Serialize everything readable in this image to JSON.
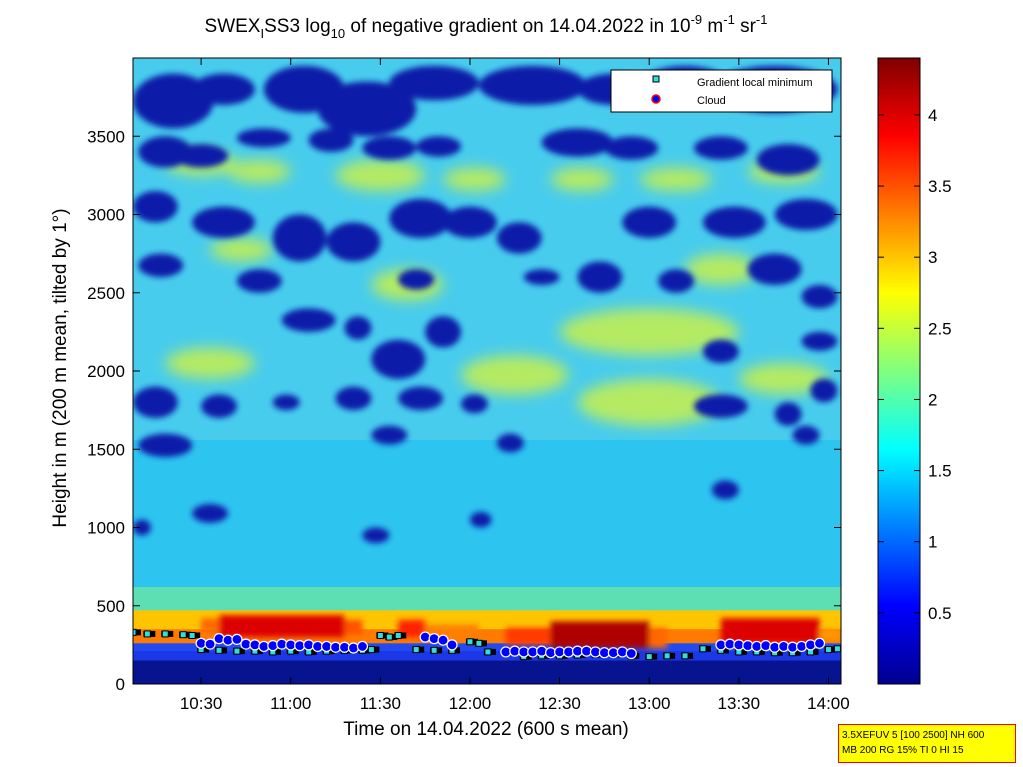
{
  "chart_data": {
    "type": "heatmap",
    "title": {
      "prefix": "SWEX",
      "sub": "I",
      "mid1": "SS3 log",
      "sub2": "10",
      "mid2": " of negative gradient on 14.04.2022 in 10",
      "sup1": "-9",
      "mid3": " m",
      "sup2": "-1",
      "mid4": " sr",
      "sup3": "-1"
    },
    "xlabel": "Time on 14.04.2022 (600 s mean)",
    "ylabel": "Height in m (200 m mean, tilted by 1°)",
    "x_ticks": [
      "10:30",
      "11:00",
      "11:30",
      "12:00",
      "12:30",
      "13:00",
      "13:30",
      "14:00"
    ],
    "x_tick_hours": [
      10.5,
      11.0,
      11.5,
      12.0,
      12.5,
      13.0,
      13.5,
      14.0
    ],
    "x_range_hours": [
      10.12,
      14.07
    ],
    "y_ticks": [
      "0",
      "500",
      "1000",
      "1500",
      "2000",
      "2500",
      "3000",
      "3500"
    ],
    "y_tick_values": [
      0,
      500,
      1000,
      1500,
      2000,
      2500,
      3000,
      3500
    ],
    "ylim": [
      0,
      4000
    ],
    "colorbar": {
      "ticks": [
        "0.5",
        "1",
        "1.5",
        "2",
        "2.5",
        "3",
        "3.5",
        "4"
      ],
      "tick_values": [
        0.5,
        1,
        1.5,
        2,
        2.5,
        3,
        3.5,
        4
      ],
      "range": [
        0,
        4.4
      ],
      "colormap": "jet"
    },
    "legend": {
      "placement": "top-right",
      "entries": [
        {
          "label": "Gradient local minimum",
          "marker": "square",
          "color": "#33dddd"
        },
        {
          "label": "Cloud",
          "marker": "circle",
          "color": "#0000ff",
          "edge": "#ff0000"
        }
      ]
    },
    "gradient_minimum": {
      "x": [
        10.12,
        10.2,
        10.3,
        10.4,
        10.45,
        10.5,
        10.6,
        10.7,
        10.8,
        10.9,
        11.0,
        11.1,
        11.2,
        11.3,
        11.4,
        11.45,
        11.5,
        11.55,
        11.6,
        11.7,
        11.8,
        11.9,
        12.0,
        12.05,
        12.1,
        12.2,
        12.3,
        12.4,
        12.5,
        12.6,
        12.7,
        12.8,
        12.9,
        13.0,
        13.1,
        13.2,
        13.3,
        13.4,
        13.5,
        13.6,
        13.7,
        13.8,
        13.9,
        14.0,
        14.05
      ],
      "y": [
        330,
        320,
        320,
        315,
        310,
        220,
        215,
        210,
        210,
        205,
        210,
        205,
        210,
        215,
        215,
        220,
        310,
        300,
        310,
        220,
        215,
        215,
        270,
        260,
        205,
        200,
        175,
        180,
        180,
        185,
        190,
        190,
        180,
        175,
        180,
        180,
        225,
        215,
        205,
        205,
        200,
        200,
        205,
        220,
        225
      ]
    },
    "cloud": {
      "x": [
        10.5,
        10.55,
        10.6,
        10.65,
        10.7,
        10.75,
        10.8,
        10.85,
        10.9,
        10.95,
        11.0,
        11.05,
        11.1,
        11.15,
        11.2,
        11.25,
        11.3,
        11.35,
        11.4,
        11.75,
        11.8,
        11.85,
        11.9,
        12.2,
        12.25,
        12.3,
        12.35,
        12.4,
        12.45,
        12.5,
        12.55,
        12.6,
        12.65,
        12.7,
        12.75,
        12.8,
        12.85,
        12.9,
        13.4,
        13.45,
        13.5,
        13.55,
        13.6,
        13.65,
        13.7,
        13.75,
        13.8,
        13.85,
        13.9,
        13.95
      ],
      "y": [
        260,
        255,
        290,
        280,
        285,
        255,
        250,
        240,
        245,
        255,
        250,
        245,
        250,
        240,
        240,
        235,
        235,
        230,
        240,
        300,
        290,
        280,
        250,
        205,
        210,
        205,
        205,
        210,
        200,
        205,
        205,
        210,
        210,
        205,
        200,
        200,
        205,
        195,
        250,
        255,
        250,
        245,
        240,
        245,
        235,
        240,
        235,
        240,
        250,
        260
      ]
    },
    "features": {
      "blue_regions": [
        [
          10.12,
          3900,
          0.45,
          350
        ],
        [
          10.45,
          3900,
          0.35,
          200
        ],
        [
          10.85,
          3950,
          0.45,
          300
        ],
        [
          11.15,
          3850,
          0.55,
          350
        ],
        [
          11.55,
          3950,
          0.5,
          220
        ],
        [
          12.05,
          3950,
          0.6,
          250
        ],
        [
          12.6,
          3900,
          0.4,
          200
        ],
        [
          12.95,
          3950,
          0.5,
          250
        ],
        [
          13.35,
          3950,
          0.7,
          300
        ],
        [
          10.15,
          3500,
          0.3,
          200
        ],
        [
          10.35,
          3450,
          0.3,
          150
        ],
        [
          10.7,
          3550,
          0.3,
          120
        ],
        [
          11.1,
          3550,
          0.25,
          150
        ],
        [
          11.4,
          3500,
          0.3,
          150
        ],
        [
          11.7,
          3500,
          0.25,
          130
        ],
        [
          12.4,
          3550,
          0.4,
          180
        ],
        [
          12.75,
          3500,
          0.3,
          150
        ],
        [
          13.25,
          3500,
          0.3,
          150
        ],
        [
          13.6,
          3450,
          0.35,
          200
        ],
        [
          10.12,
          3150,
          0.25,
          200
        ],
        [
          10.45,
          3050,
          0.35,
          200
        ],
        [
          10.9,
          3000,
          0.3,
          300
        ],
        [
          11.2,
          2950,
          0.3,
          250
        ],
        [
          11.55,
          3100,
          0.35,
          250
        ],
        [
          11.85,
          3050,
          0.3,
          200
        ],
        [
          12.15,
          2950,
          0.25,
          200
        ],
        [
          12.85,
          3050,
          0.3,
          200
        ],
        [
          13.3,
          3050,
          0.35,
          200
        ],
        [
          13.7,
          3100,
          0.35,
          200
        ],
        [
          10.15,
          2750,
          0.25,
          150
        ],
        [
          10.7,
          2650,
          0.25,
          150
        ],
        [
          11.6,
          2650,
          0.2,
          130
        ],
        [
          12.3,
          2650,
          0.2,
          100
        ],
        [
          12.6,
          2700,
          0.25,
          200
        ],
        [
          13.05,
          2650,
          0.2,
          150
        ],
        [
          13.55,
          2750,
          0.3,
          200
        ],
        [
          13.85,
          2550,
          0.2,
          150
        ],
        [
          10.95,
          2400,
          0.3,
          150
        ],
        [
          11.3,
          2350,
          0.15,
          150
        ],
        [
          11.75,
          2350,
          0.2,
          200
        ],
        [
          11.45,
          2200,
          0.3,
          250
        ],
        [
          13.3,
          2200,
          0.2,
          150
        ],
        [
          13.85,
          2250,
          0.2,
          120
        ],
        [
          10.12,
          1900,
          0.25,
          200
        ],
        [
          10.5,
          1850,
          0.2,
          150
        ],
        [
          10.9,
          1850,
          0.15,
          100
        ],
        [
          11.25,
          1900,
          0.2,
          150
        ],
        [
          11.6,
          1900,
          0.25,
          150
        ],
        [
          11.95,
          1850,
          0.15,
          120
        ],
        [
          13.25,
          1850,
          0.3,
          150
        ],
        [
          13.7,
          1800,
          0.15,
          150
        ],
        [
          13.9,
          1950,
          0.15,
          150
        ],
        [
          10.15,
          1600,
          0.3,
          150
        ],
        [
          11.45,
          1650,
          0.2,
          120
        ],
        [
          12.15,
          1600,
          0.15,
          120
        ],
        [
          13.35,
          1300,
          0.15,
          120
        ],
        [
          13.8,
          1650,
          0.15,
          120
        ],
        [
          10.12,
          1050,
          0.1,
          100
        ],
        [
          10.45,
          1150,
          0.2,
          120
        ],
        [
          11.4,
          1000,
          0.15,
          100
        ],
        [
          12.0,
          1100,
          0.12,
          100
        ]
      ],
      "yellow_regions": [
        [
          10.3,
          3400,
          0.4,
          150
        ],
        [
          10.65,
          3350,
          0.35,
          150
        ],
        [
          11.25,
          3350,
          0.5,
          200
        ],
        [
          11.85,
          3300,
          0.35,
          150
        ],
        [
          12.45,
          3300,
          0.35,
          150
        ],
        [
          12.95,
          3300,
          0.4,
          150
        ],
        [
          13.55,
          3350,
          0.4,
          150
        ],
        [
          10.55,
          2850,
          0.35,
          150
        ],
        [
          11.45,
          2650,
          0.4,
          200
        ],
        [
          12.5,
          2400,
          1.0,
          300
        ],
        [
          13.2,
          2750,
          0.4,
          200
        ],
        [
          10.3,
          2150,
          0.5,
          200
        ],
        [
          11.95,
          2100,
          0.6,
          250
        ],
        [
          12.6,
          1950,
          0.8,
          300
        ],
        [
          13.5,
          2050,
          0.5,
          200
        ]
      ],
      "hot_segments": [
        [
          10.5,
          10.6,
          330,
          420,
          3.4
        ],
        [
          10.6,
          11.3,
          300,
          440,
          4.0
        ],
        [
          11.3,
          11.4,
          320,
          410,
          3.5
        ],
        [
          11.6,
          11.75,
          300,
          410,
          3.7
        ],
        [
          11.75,
          12.05,
          290,
          380,
          3.3
        ],
        [
          12.2,
          12.45,
          250,
          360,
          3.6
        ],
        [
          12.45,
          13.0,
          230,
          400,
          4.2
        ],
        [
          13.0,
          13.1,
          230,
          360,
          3.4
        ],
        [
          13.4,
          13.95,
          260,
          420,
          4.0
        ],
        [
          13.95,
          14.07,
          280,
          350,
          3.2
        ]
      ]
    }
  },
  "info_box": {
    "line1": "3.5XEFUV 5 [100 2500] NH 600",
    "line2": "MB 200 RG 15% TI 0 HI 15"
  }
}
